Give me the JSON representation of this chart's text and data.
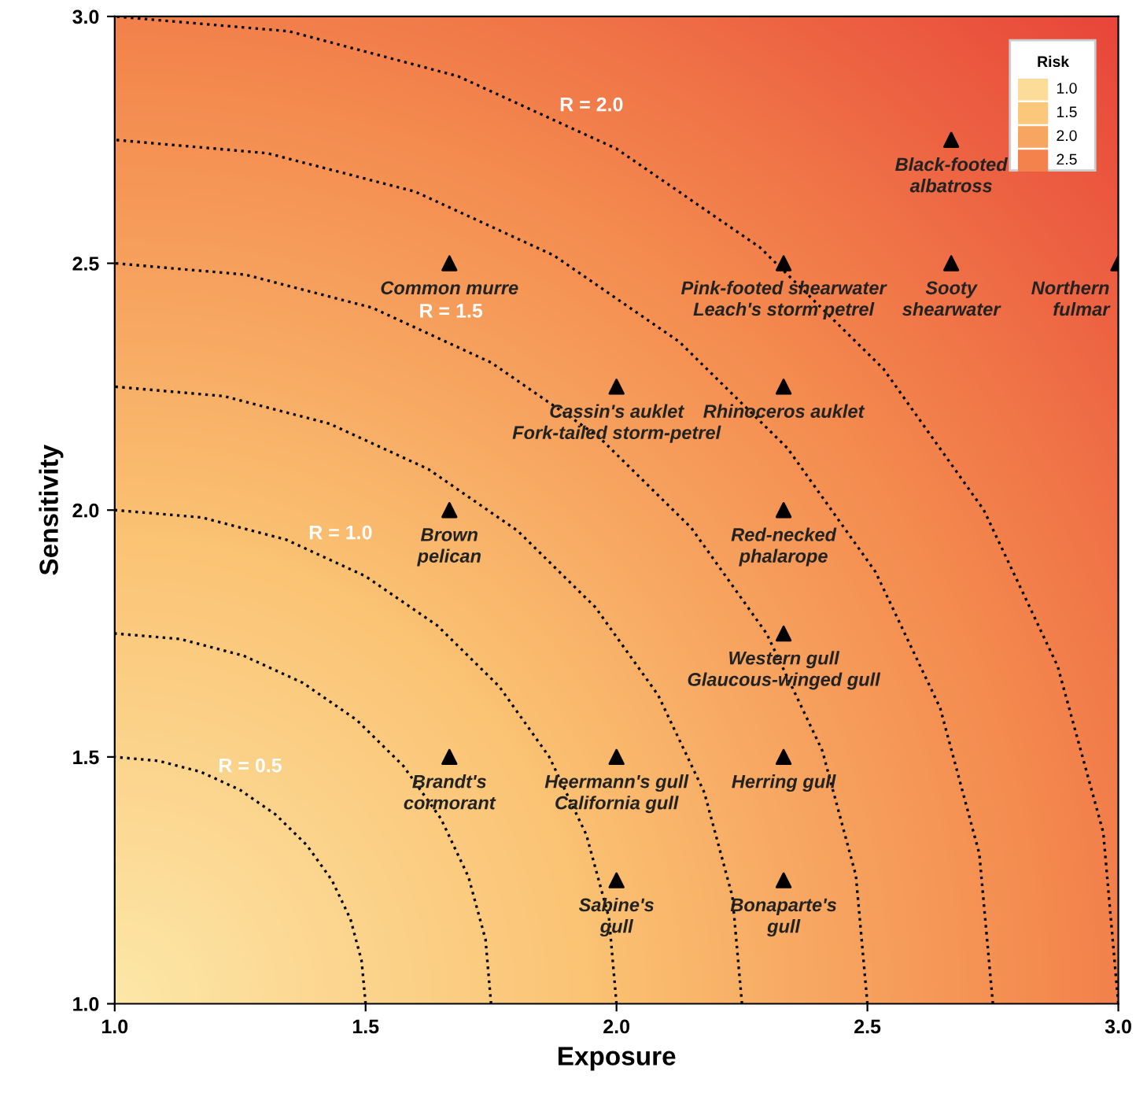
{
  "chart_data": {
    "type": "scatter",
    "xlabel": "Exposure",
    "ylabel": "Sensitivity",
    "xlim": [
      1.0,
      3.0
    ],
    "ylim": [
      1.0,
      3.0
    ],
    "xticks": [
      {
        "value": 1.0,
        "label": "1.0"
      },
      {
        "value": 1.5,
        "label": "1.5"
      },
      {
        "value": 2.0,
        "label": "2.0"
      },
      {
        "value": 2.5,
        "label": "2.5"
      },
      {
        "value": 3.0,
        "label": "3.0"
      }
    ],
    "yticks": [
      {
        "value": 1.0,
        "label": "1.0"
      },
      {
        "value": 1.5,
        "label": "1.5"
      },
      {
        "value": 2.0,
        "label": "2.0"
      },
      {
        "value": 2.5,
        "label": "2.5"
      },
      {
        "value": 3.0,
        "label": "3.0"
      }
    ],
    "grid": false,
    "annotations": [
      "Risk",
      "1.0",
      "1.5",
      "2.0",
      "2.5",
      {
        "text": "R = 0.5",
        "x": 1.27,
        "y": 1.421
      },
      {
        "text": "R = 1.0",
        "x": 1.45,
        "y": 1.893
      },
      {
        "text": "R = 1.5",
        "x": 1.67,
        "y": 2.342
      },
      {
        "text": "R = 2.0",
        "x": 1.95,
        "y": 2.76
      }
    ],
    "series": [
      {
        "color": "#000000",
        "marker": "triangle",
        "x": [
          1.667,
          2.333,
          2.667,
          2.667,
          3.0,
          2.0,
          2.333,
          1.667,
          2.333,
          2.333,
          1.667,
          2.0,
          2.333,
          2.0,
          2.333
        ],
        "values": [
          2.5,
          2.5,
          2.75,
          2.5,
          2.5,
          2.25,
          2.25,
          2.0,
          2.0,
          1.75,
          1.5,
          1.5,
          1.5,
          1.25,
          1.25
        ],
        "value_labels": [
          "Common murre",
          "Pink-footed shearwater\nLeach's storm petrel",
          "Black-footed\nalbatross",
          "Sooty\nshearwater",
          "Northern\nfulmar",
          "Cassin's auklet\nFork-tailed storm-petrel",
          "Rhinoceros auklet",
          "Brown\npelican",
          "Red-necked\nphalarope",
          "Western gull\nGlaucous-winged gull",
          "Brandt's\ncormorant",
          "Heermann's gull\nCalifornia gull",
          "Herring gull",
          "Sabine's\ngull",
          "Bonaparte's\ngull"
        ]
      },
      {
        "type": "line",
        "color": "#000000",
        "line_style": "dotted",
        "x": [
          1.5,
          1.492,
          1.47,
          1.433,
          1.383,
          1.321,
          1.25,
          1.171,
          1.087,
          1.0
        ],
        "values": [
          1.0,
          1.087,
          1.171,
          1.25,
          1.321,
          1.383,
          1.433,
          1.47,
          1.492,
          1.5
        ]
      },
      {
        "type": "line",
        "color": "#000000",
        "line_style": "dotted",
        "x": [
          1.75,
          1.739,
          1.705,
          1.65,
          1.575,
          1.482,
          1.375,
          1.257,
          1.13,
          1.0
        ],
        "values": [
          1.0,
          1.13,
          1.257,
          1.375,
          1.482,
          1.575,
          1.65,
          1.705,
          1.739,
          1.75
        ]
      },
      {
        "type": "line",
        "color": "#000000",
        "line_style": "dotted",
        "x": [
          2.0,
          1.985,
          1.94,
          1.866,
          1.766,
          1.643,
          1.5,
          1.342,
          1.174,
          1.0
        ],
        "values": [
          1.0,
          1.174,
          1.342,
          1.5,
          1.643,
          1.766,
          1.866,
          1.94,
          1.985,
          2.0
        ]
      },
      {
        "type": "line",
        "color": "#000000",
        "line_style": "dotted",
        "x": [
          2.25,
          2.231,
          2.175,
          2.083,
          1.958,
          1.803,
          1.625,
          1.428,
          1.217,
          1.0
        ],
        "values": [
          1.0,
          1.217,
          1.428,
          1.625,
          1.803,
          1.958,
          2.083,
          2.175,
          2.231,
          2.25
        ]
      },
      {
        "type": "line",
        "color": "#000000",
        "line_style": "dotted",
        "x": [
          2.5,
          2.477,
          2.41,
          2.299,
          2.149,
          1.964,
          1.75,
          1.513,
          1.26,
          1.0
        ],
        "values": [
          1.0,
          1.26,
          1.513,
          1.75,
          1.964,
          2.149,
          2.299,
          2.41,
          2.477,
          2.5
        ]
      },
      {
        "type": "line",
        "color": "#000000",
        "line_style": "dotted",
        "x": [
          2.75,
          2.723,
          2.645,
          2.516,
          2.341,
          2.125,
          1.875,
          1.599,
          1.304,
          1.0
        ],
        "values": [
          1.0,
          1.304,
          1.599,
          1.875,
          2.125,
          2.341,
          2.516,
          2.645,
          2.723,
          2.75
        ]
      },
      {
        "type": "line",
        "color": "#000000",
        "line_style": "dotted",
        "x": [
          3.0,
          2.97,
          2.879,
          2.732,
          2.532,
          2.286,
          2.0,
          1.684,
          1.347,
          1.0
        ],
        "values": [
          1.0,
          1.347,
          1.684,
          2.0,
          2.286,
          2.532,
          2.732,
          2.879,
          2.97,
          3.0
        ]
      }
    ]
  }
}
